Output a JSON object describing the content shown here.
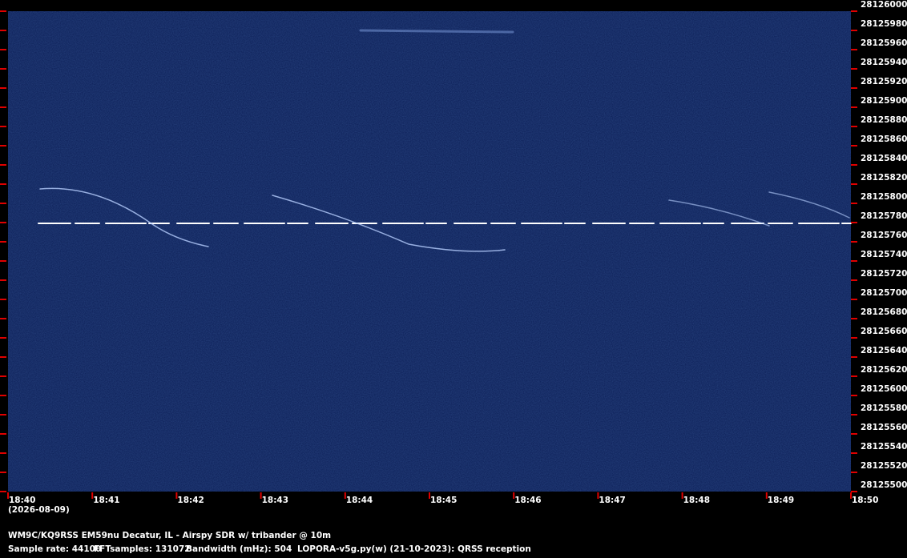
{
  "chart_data": {
    "type": "spectrogram",
    "ylim": [
      28125500,
      28126000
    ],
    "yticks": [
      28125500,
      28125520,
      28125540,
      28125560,
      28125580,
      28125600,
      28125620,
      28125640,
      28125660,
      28125680,
      28125700,
      28125720,
      28125740,
      28125760,
      28125780,
      28125800,
      28125820,
      28125840,
      28125860,
      28125880,
      28125900,
      28125920,
      28125940,
      28125960,
      28125980,
      28126000
    ],
    "xticks": [
      "18:40",
      "18:41",
      "18:42",
      "18:43",
      "18:44",
      "18:45",
      "18:46",
      "18:47",
      "18:48",
      "18:49",
      "18:50"
    ],
    "date": "(2026-08-09)",
    "footer": {
      "station": "WM9C/KQ9RSS EM59nu Decatur, IL - Airspy SDR w/ tribander @ 10m",
      "sample_rate": "Sample rate: 44100",
      "fft_samples": "FFTsamples: 131072",
      "bandwidth": "Bandwidth (mHz): 504",
      "software": "LOPORA-v5g.py(w) (21-10-2023): QRSS reception"
    }
  }
}
